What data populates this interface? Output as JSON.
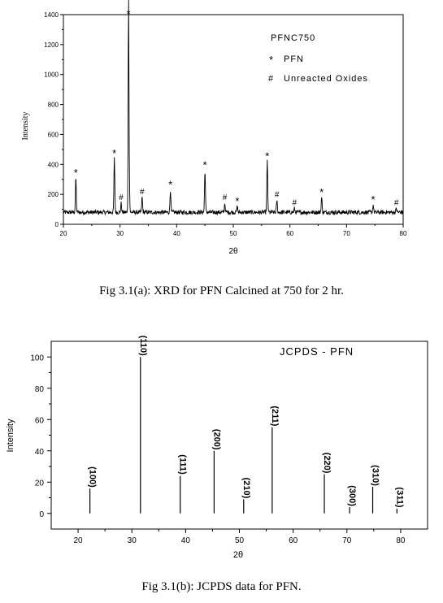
{
  "chart_data": [
    {
      "type": "line",
      "title": "PFNC750",
      "xlabel": "2θ",
      "ylabel": "Intensity",
      "xlim": [
        20,
        80
      ],
      "ylim": [
        0,
        1400
      ],
      "x_ticks": [
        "20",
        "30",
        "40",
        "50",
        "60",
        "70",
        "80"
      ],
      "y_ticks": [
        "0",
        "200",
        "400",
        "600",
        "800",
        "1000",
        "1200",
        "1400"
      ],
      "baseline": 80,
      "legend": [
        {
          "marker": "*",
          "label": "PFN"
        },
        {
          "marker": "#",
          "label": "Unreacted Oxides"
        }
      ],
      "peaks": [
        {
          "x": 22.2,
          "y": 310,
          "marker": "*"
        },
        {
          "x": 29.0,
          "y": 440,
          "marker": "*"
        },
        {
          "x": 30.2,
          "y": 140,
          "marker": "#"
        },
        {
          "x": 31.5,
          "y": 1370,
          "marker": "*"
        },
        {
          "x": 31.6,
          "y": 400,
          "marker": ""
        },
        {
          "x": 33.9,
          "y": 180,
          "marker": "#"
        },
        {
          "x": 38.9,
          "y": 230,
          "marker": "*"
        },
        {
          "x": 45.0,
          "y": 360,
          "marker": "*"
        },
        {
          "x": 48.5,
          "y": 140,
          "marker": "#"
        },
        {
          "x": 50.7,
          "y": 120,
          "marker": "*"
        },
        {
          "x": 56.0,
          "y": 420,
          "marker": "*"
        },
        {
          "x": 57.7,
          "y": 160,
          "marker": "#"
        },
        {
          "x": 60.8,
          "y": 105,
          "marker": "#"
        },
        {
          "x": 65.6,
          "y": 180,
          "marker": "*"
        },
        {
          "x": 74.7,
          "y": 130,
          "marker": "*"
        },
        {
          "x": 78.8,
          "y": 105,
          "marker": "#"
        }
      ],
      "caption": "Fig 3.1(a): XRD for PFN Calcined at 750 for 2 hr."
    },
    {
      "type": "bar",
      "title": "JCPDS - PFN",
      "xlabel": "2θ",
      "ylabel": "Intensity",
      "xlim": [
        15,
        85
      ],
      "ylim": [
        -10,
        110
      ],
      "x_ticks": [
        "20",
        "30",
        "40",
        "50",
        "60",
        "70",
        "80"
      ],
      "y_ticks": [
        "0",
        "20",
        "40",
        "60",
        "80",
        "100"
      ],
      "lines": [
        {
          "x": 22.2,
          "y": 16,
          "label": "(100)"
        },
        {
          "x": 31.6,
          "y": 100,
          "label": "(110)"
        },
        {
          "x": 39.0,
          "y": 24,
          "label": "(111)"
        },
        {
          "x": 45.3,
          "y": 40,
          "label": "(200)"
        },
        {
          "x": 50.8,
          "y": 9,
          "label": "(210)"
        },
        {
          "x": 56.1,
          "y": 55,
          "label": "(211)"
        },
        {
          "x": 65.8,
          "y": 25,
          "label": "(220)"
        },
        {
          "x": 70.5,
          "y": 4,
          "label": "(300)"
        },
        {
          "x": 74.8,
          "y": 17,
          "label": "(310)"
        },
        {
          "x": 79.3,
          "y": 3,
          "label": "(311)"
        }
      ],
      "caption": "Fig 3.1(b): JCPDS data for PFN."
    }
  ]
}
